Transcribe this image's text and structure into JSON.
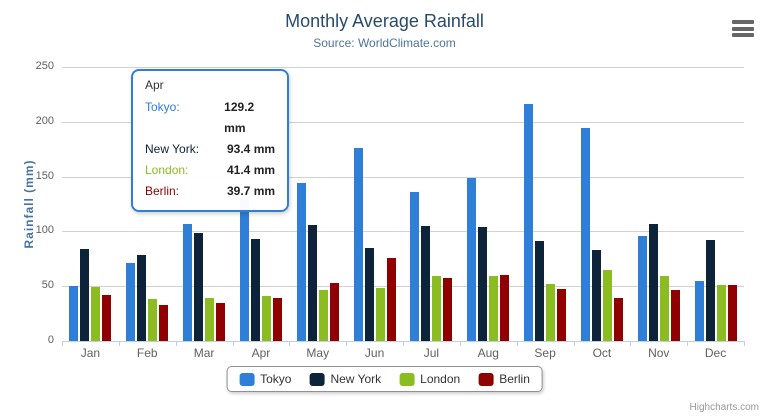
{
  "chart_data": {
    "type": "bar",
    "title": "Monthly Average Rainfall",
    "subtitle": "Source: WorldClimate.com",
    "xlabel": "",
    "ylabel": "Rainfall (mm)",
    "ylim": [
      0,
      250
    ],
    "ytick_interval": 50,
    "yticks": [
      "0",
      "50",
      "100",
      "150",
      "200",
      "250"
    ],
    "grid": true,
    "legend_position": "bottom",
    "categories": [
      "Jan",
      "Feb",
      "Mar",
      "Apr",
      "May",
      "Jun",
      "Jul",
      "Aug",
      "Sep",
      "Oct",
      "Nov",
      "Dec"
    ],
    "series": [
      {
        "name": "Tokyo",
        "color": "#2f7ed8",
        "values": [
          49.9,
          71.5,
          106.4,
          129.2,
          144.0,
          176.0,
          135.6,
          148.5,
          216.4,
          194.1,
          95.6,
          54.4
        ]
      },
      {
        "name": "New York",
        "color": "#0d233a",
        "values": [
          83.6,
          78.8,
          98.5,
          93.4,
          106.0,
          84.5,
          105.0,
          104.3,
          91.2,
          83.5,
          106.6,
          92.3
        ]
      },
      {
        "name": "London",
        "color": "#8bbc21",
        "values": [
          48.9,
          38.8,
          39.3,
          41.4,
          47.0,
          48.3,
          59.0,
          59.6,
          52.4,
          65.2,
          59.3,
          51.2
        ]
      },
      {
        "name": "Berlin",
        "color": "#910000",
        "values": [
          42.4,
          33.2,
          34.5,
          39.7,
          52.6,
          75.5,
          57.4,
          60.4,
          47.6,
          39.1,
          46.8,
          51.1
        ]
      }
    ]
  },
  "tooltip": {
    "header": "Apr",
    "rows": [
      {
        "name": "Tokyo:",
        "value": "129.2 mm",
        "color": "#2f7ed8"
      },
      {
        "name": "New York:",
        "value": "93.4 mm",
        "color": "#0d233a"
      },
      {
        "name": "London:",
        "value": "41.4 mm",
        "color": "#8bbc21"
      },
      {
        "name": "Berlin:",
        "value": "39.7 mm",
        "color": "#910000"
      }
    ]
  },
  "export_menu": {
    "icon": "hamburger-menu"
  },
  "credits": "Highcharts.com",
  "colors": {
    "title": "#274b6d",
    "subtitle": "#4d759e",
    "axis_title": "#4572A7",
    "axis_labels": "#606060",
    "axis_line": "#C0D0E0",
    "gridline": "#d2d2d2",
    "tooltip_border": "#2f7ed8"
  }
}
